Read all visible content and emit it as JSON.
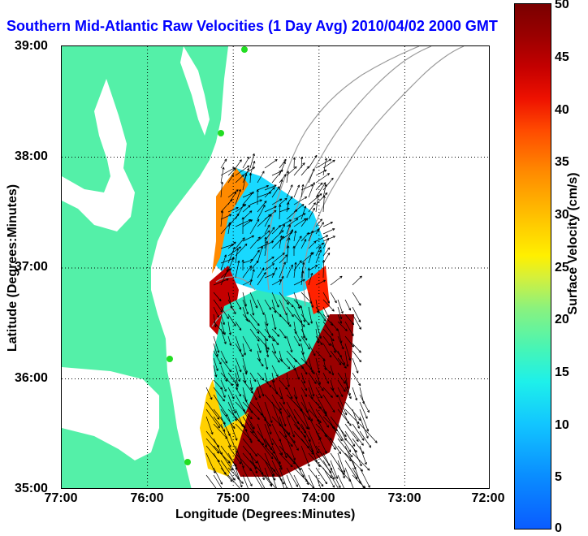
{
  "title": "Southern Mid-Atlantic Raw Velocities (1 Day Avg) 2010/04/02 2000 GMT",
  "colors": {
    "title": "#0000ff",
    "land": "#54f0a8",
    "water": "#ffffff",
    "bathymetry": "#9a9a9a",
    "grid": "#000000",
    "vectors": "#000000",
    "station": "#22dd22"
  },
  "x_axis": {
    "label": "Longitude (Degrees:Minutes)",
    "ticks": [
      "77:00",
      "76:00",
      "75:00",
      "74:00",
      "73:00",
      "72:00"
    ]
  },
  "y_axis": {
    "label": "Latitude (Degrees:Minutes)",
    "ticks": [
      "39:00",
      "38:00",
      "37:00",
      "36:00",
      "35:00"
    ]
  },
  "colorbar": {
    "label": "Surface Velocity (cm/s)",
    "ticks": [
      "50",
      "45",
      "40",
      "35",
      "30",
      "25",
      "20",
      "15",
      "10",
      "5",
      "0"
    ],
    "range": [
      0,
      50
    ]
  },
  "map_extent": {
    "lon": [
      -77,
      -72
    ],
    "lat": [
      35,
      39
    ]
  }
}
